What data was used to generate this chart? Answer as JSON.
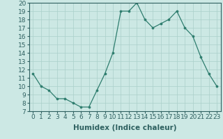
{
  "x": [
    0,
    1,
    2,
    3,
    4,
    5,
    6,
    7,
    8,
    9,
    10,
    11,
    12,
    13,
    14,
    15,
    16,
    17,
    18,
    19,
    20,
    21,
    22,
    23
  ],
  "y": [
    11.5,
    10.0,
    9.5,
    8.5,
    8.5,
    8.0,
    7.5,
    7.5,
    9.5,
    11.5,
    14.0,
    19.0,
    19.0,
    20.0,
    18.0,
    17.0,
    17.5,
    18.0,
    19.0,
    17.0,
    16.0,
    13.5,
    11.5,
    10.0
  ],
  "ylim": [
    7,
    20
  ],
  "xlim": [
    -0.5,
    23.5
  ],
  "yticks": [
    7,
    8,
    9,
    10,
    11,
    12,
    13,
    14,
    15,
    16,
    17,
    18,
    19,
    20
  ],
  "xticks": [
    0,
    1,
    2,
    3,
    4,
    5,
    6,
    7,
    8,
    9,
    10,
    11,
    12,
    13,
    14,
    15,
    16,
    17,
    18,
    19,
    20,
    21,
    22,
    23
  ],
  "xlabel": "Humidex (Indice chaleur)",
  "line_color": "#2e7d6e",
  "marker": "o",
  "marker_size": 2.2,
  "bg_color": "#cce8e4",
  "grid_color": "#aacfca",
  "tick_color": "#2e6060",
  "label_color": "#2e6060",
  "xlabel_fontsize": 7.5,
  "tick_fontsize": 6.5
}
